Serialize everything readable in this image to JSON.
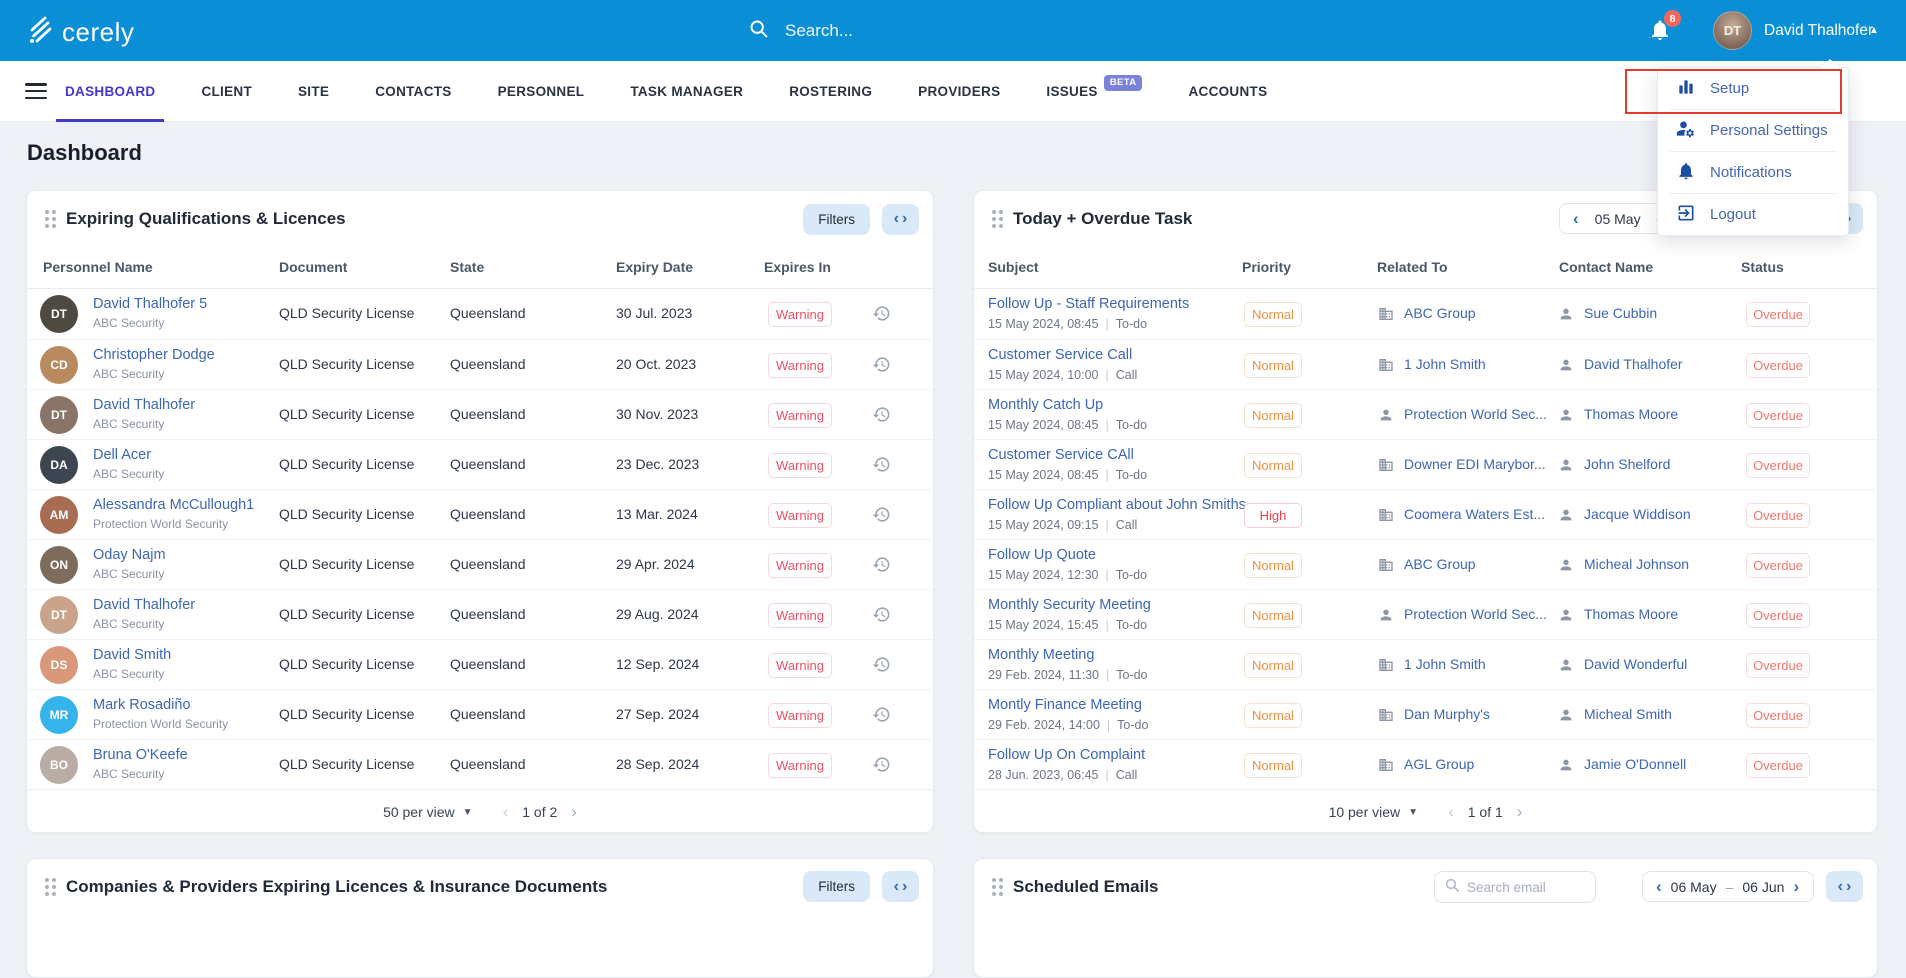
{
  "topbar": {
    "brand": "cerely",
    "search_placeholder": "Search...",
    "notification_count": "8",
    "user_name": "David Thalhofer",
    "avatar_initials": "DT"
  },
  "nav": {
    "tabs": [
      {
        "label": "DASHBOARD",
        "active": true
      },
      {
        "label": "CLIENT"
      },
      {
        "label": "SITE"
      },
      {
        "label": "CONTACTS"
      },
      {
        "label": "PERSONNEL"
      },
      {
        "label": "TASK MANAGER"
      },
      {
        "label": "ROSTERING"
      },
      {
        "label": "PROVIDERS"
      },
      {
        "label": "ISSUES",
        "badge": "BETA"
      },
      {
        "label": "ACCOUNTS"
      }
    ]
  },
  "page_title": "Dashboard",
  "user_menu": {
    "items": [
      {
        "label": "Setup",
        "icon": "bar-chart",
        "highlighted": true
      },
      {
        "label": "Personal Settings",
        "icon": "person-gear"
      },
      {
        "label": "Notifications",
        "icon": "bell"
      },
      {
        "label": "Logout",
        "icon": "logout"
      }
    ]
  },
  "expiring_panel": {
    "title": "Expiring Qualifications & Licences",
    "filters_label": "Filters",
    "columns": [
      "Personnel Name",
      "Document",
      "State",
      "Expiry Date",
      "Expires In"
    ],
    "rows": [
      {
        "name": "David Thalhofer 5",
        "company": "ABC Security",
        "initials": "DT",
        "avatar_color": "#4e4a42",
        "document": "QLD Security License",
        "state": "Queensland",
        "expiry": "30 Jul. 2023",
        "expires_in": "Warning"
      },
      {
        "name": "Christopher Dodge",
        "company": "ABC Security",
        "initials": "CD",
        "avatar_color": "#b98a5e",
        "document": "QLD Security License",
        "state": "Queensland",
        "expiry": "20 Oct. 2023",
        "expires_in": "Warning"
      },
      {
        "name": "David Thalhofer",
        "company": "ABC Security",
        "initials": "DT",
        "avatar_color": "#8a7468",
        "document": "QLD Security License",
        "state": "Queensland",
        "expiry": "30 Nov. 2023",
        "expires_in": "Warning"
      },
      {
        "name": "Dell Acer",
        "company": "ABC Security",
        "initials": "DA",
        "avatar_color": "#3c4650",
        "document": "QLD Security License",
        "state": "Queensland",
        "expiry": "23 Dec. 2023",
        "expires_in": "Warning"
      },
      {
        "name": "Alessandra McCullough1",
        "company": "Protection World Security",
        "initials": "AM",
        "avatar_color": "#a86c52",
        "document": "QLD Security License",
        "state": "Queensland",
        "expiry": "13 Mar. 2024",
        "expires_in": "Warning"
      },
      {
        "name": "Oday Najm",
        "company": "ABC Security",
        "initials": "ON",
        "avatar_color": "#7d6c5c",
        "document": "QLD Security License",
        "state": "Queensland",
        "expiry": "29 Apr. 2024",
        "expires_in": "Warning"
      },
      {
        "name": "David Thalhofer",
        "company": "ABC Security",
        "initials": "DT",
        "avatar_color": "#c9a48a",
        "document": "QLD Security License",
        "state": "Queensland",
        "expiry": "29 Aug. 2024",
        "expires_in": "Warning"
      },
      {
        "name": "David Smith",
        "company": "ABC Security",
        "initials": "DS",
        "avatar_color": "#d9987a",
        "document": "QLD Security License",
        "state": "Queensland",
        "expiry": "12 Sep. 2024",
        "expires_in": "Warning"
      },
      {
        "name": "Mark Rosadiño",
        "company": "Protection World Security",
        "initials": "MR",
        "avatar_color": "#35b3ea",
        "document": "QLD Security License",
        "state": "Queensland",
        "expiry": "27 Sep. 2024",
        "expires_in": "Warning"
      },
      {
        "name": "Bruna O'Keefe",
        "company": "ABC Security",
        "initials": "BO",
        "avatar_color": "#b8aca4",
        "document": "QLD Security License",
        "state": "Queensland",
        "expiry": "28 Sep. 2024",
        "expires_in": "Warning"
      }
    ],
    "per_view": "50 per view",
    "page_info": "1 of 2"
  },
  "tasks_panel": {
    "title": "Today + Overdue Task",
    "date_start": "05 May",
    "columns": [
      "Subject",
      "Priority",
      "Related To",
      "Contact Name",
      "Status"
    ],
    "rows": [
      {
        "subject": "Follow Up - Staff Requirements",
        "datetime": "15 May 2024, 08:45",
        "type": "To-do",
        "priority": "Normal",
        "related": "ABC Group",
        "related_icon": "building",
        "contact": "Sue Cubbin",
        "status": "Overdue"
      },
      {
        "subject": "Customer Service Call",
        "datetime": "15 May 2024, 10:00",
        "type": "Call",
        "priority": "Normal",
        "related": "1 John Smith",
        "related_icon": "building",
        "contact": "David Thalhofer",
        "status": "Overdue"
      },
      {
        "subject": "Monthly Catch Up",
        "datetime": "15 May 2024, 08:45",
        "type": "To-do",
        "priority": "Normal",
        "related": "Protection World Sec...",
        "related_icon": "person",
        "contact": "Thomas Moore",
        "status": "Overdue"
      },
      {
        "subject": "Customer Service CAll",
        "datetime": "15 May 2024, 08:45",
        "type": "To-do",
        "priority": "Normal",
        "related": "Downer EDI Marybor...",
        "related_icon": "building",
        "contact": "John Shelford",
        "status": "Overdue"
      },
      {
        "subject": "Follow Up Compliant about John Smiths",
        "datetime": "15 May 2024, 09:15",
        "type": "Call",
        "priority": "High",
        "related": "Coomera Waters Est...",
        "related_icon": "building",
        "contact": "Jacque Widdison",
        "status": "Overdue"
      },
      {
        "subject": "Follow Up Quote",
        "datetime": "15 May 2024, 12:30",
        "type": "To-do",
        "priority": "Normal",
        "related": "ABC Group",
        "related_icon": "building",
        "contact": "Micheal Johnson",
        "status": "Overdue"
      },
      {
        "subject": "Monthly Security Meeting",
        "datetime": "15 May 2024, 15:45",
        "type": "To-do",
        "priority": "Normal",
        "related": "Protection World Sec...",
        "related_icon": "person",
        "contact": "Thomas Moore",
        "status": "Overdue"
      },
      {
        "subject": "Monthly Meeting",
        "datetime": "29 Feb. 2024, 11:30",
        "type": "To-do",
        "priority": "Normal",
        "related": "1 John Smith",
        "related_icon": "building",
        "contact": "David Wonderful",
        "status": "Overdue"
      },
      {
        "subject": "Montly Finance Meeting",
        "datetime": "29 Feb. 2024, 14:00",
        "type": "To-do",
        "priority": "Normal",
        "related": "Dan Murphy's",
        "related_icon": "building",
        "contact": "Micheal Smith",
        "status": "Overdue"
      },
      {
        "subject": "Follow Up On Complaint",
        "datetime": "28 Jun. 2023, 06:45",
        "type": "Call",
        "priority": "Normal",
        "related": "AGL Group",
        "related_icon": "building",
        "contact": "Jamie O'Donnell",
        "status": "Overdue"
      }
    ],
    "per_view": "10 per view",
    "page_info": "1 of 1"
  },
  "companies_panel": {
    "title": "Companies & Providers Expiring Licences & Insurance Documents",
    "filters_label": "Filters"
  },
  "emails_panel": {
    "title": "Scheduled Emails",
    "search_placeholder": "Search email",
    "date_start": "06 May",
    "date_end": "06 Jun"
  },
  "colors": {
    "topbar": "#0a8fd6",
    "active_tab": "#4338ca",
    "link": "#3d66b3",
    "warning": "#ee5065",
    "normal": "#ef9242",
    "high": "#ee3f4f",
    "overdue": "#f3766c",
    "annotation": "#e13a30"
  }
}
